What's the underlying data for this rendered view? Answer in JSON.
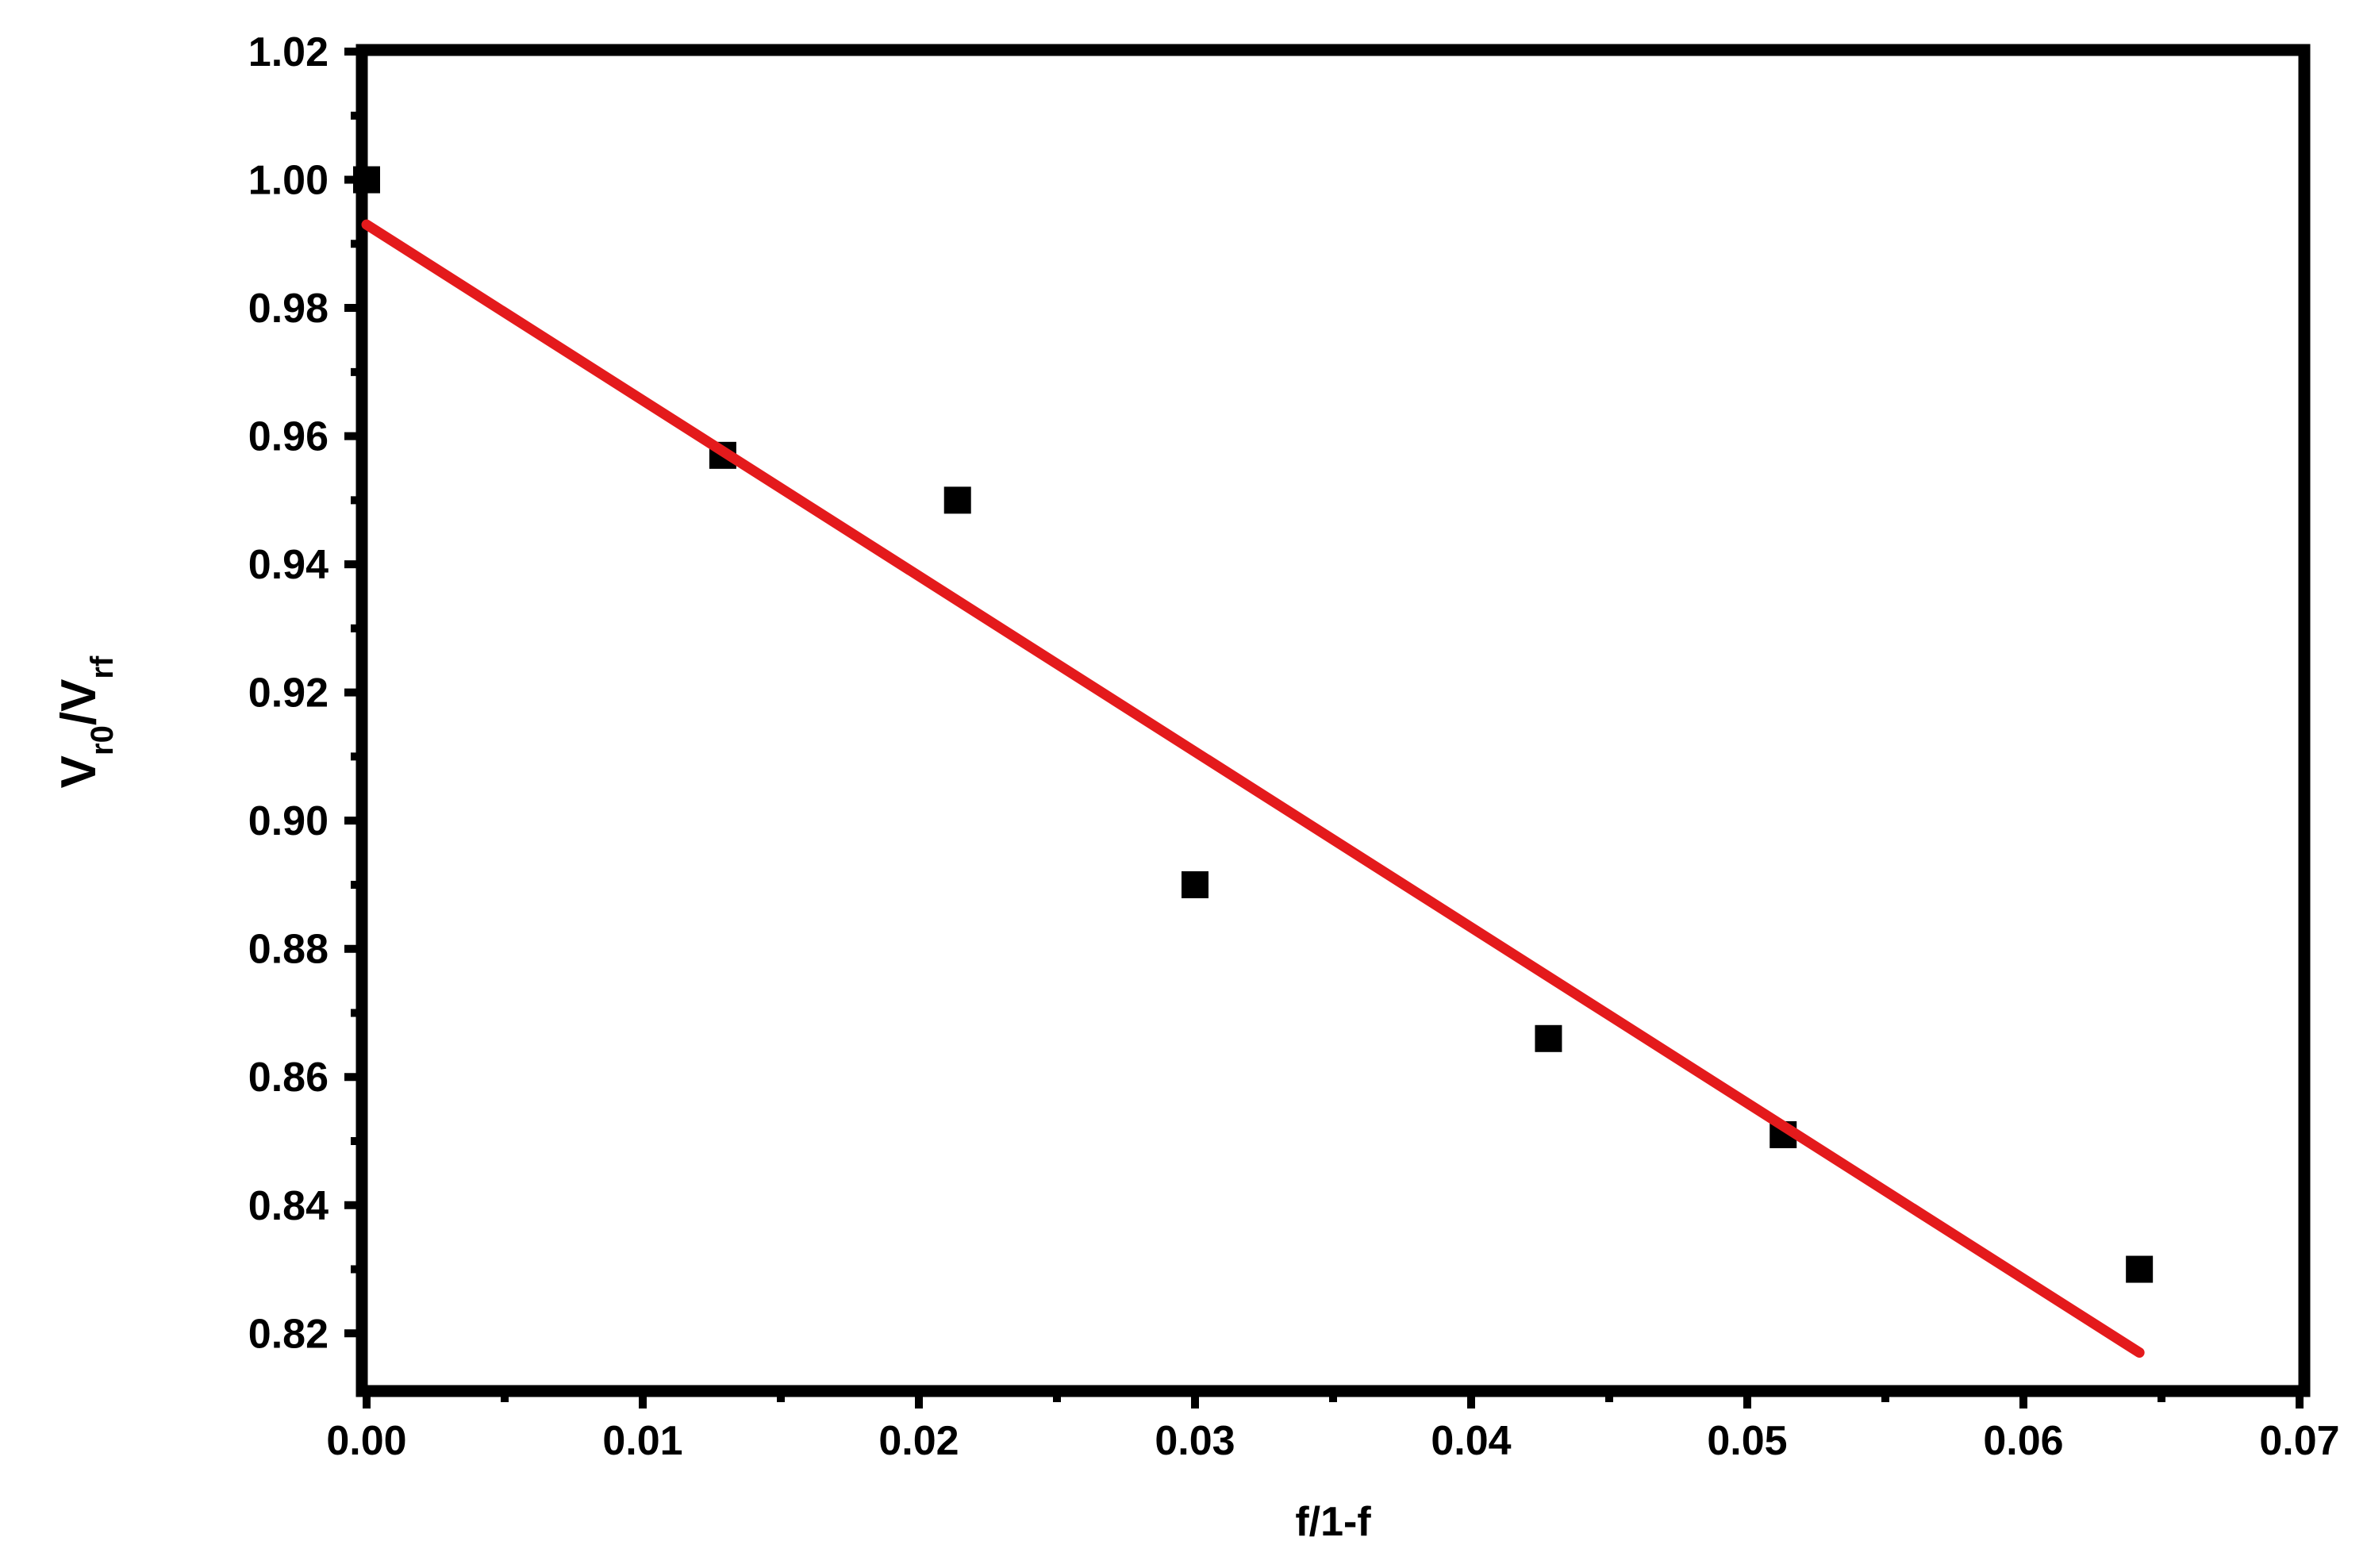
{
  "chart_data": {
    "type": "scatter",
    "xlabel": "f/1-f",
    "ylabel": [
      "V",
      "r0",
      "/V",
      "rf"
    ],
    "xlim": [
      0,
      0.07
    ],
    "ylim": [
      0.811,
      1.02
    ],
    "xticks": [
      {
        "value": 0,
        "label": "0.00"
      },
      0.01,
      0.02,
      0.03,
      0.04,
      0.05,
      0.06,
      0.07
    ],
    "yticks": [
      0.82,
      0.84,
      0.86,
      0.88,
      {
        "value": 0.9,
        "label": "0.90"
      },
      0.92,
      0.94,
      0.96,
      0.98,
      {
        "value": 1,
        "label": "1.00"
      },
      1.02
    ],
    "xminorticks": [
      0.005,
      0.015,
      0.025,
      0.035,
      0.045,
      0.055,
      0.065
    ],
    "yminorticks": [
      0.83,
      0.85,
      0.87,
      0.89,
      0.91,
      0.93,
      0.95,
      0.97,
      0.99,
      1.01
    ],
    "series": [
      {
        "marker": "square",
        "color": "#000000",
        "x": [
          0,
          0.0129,
          0.0214,
          0.03,
          0.0428,
          0.0513,
          0.0642
        ],
        "values": [
          1.0,
          0.957,
          0.95,
          0.89,
          0.866,
          0.851,
          0.83
        ]
      },
      {
        "line": true,
        "color": "#e41a1c",
        "x": [
          0,
          0.0642
        ],
        "values": [
          0.993,
          0.817
        ]
      }
    ]
  }
}
